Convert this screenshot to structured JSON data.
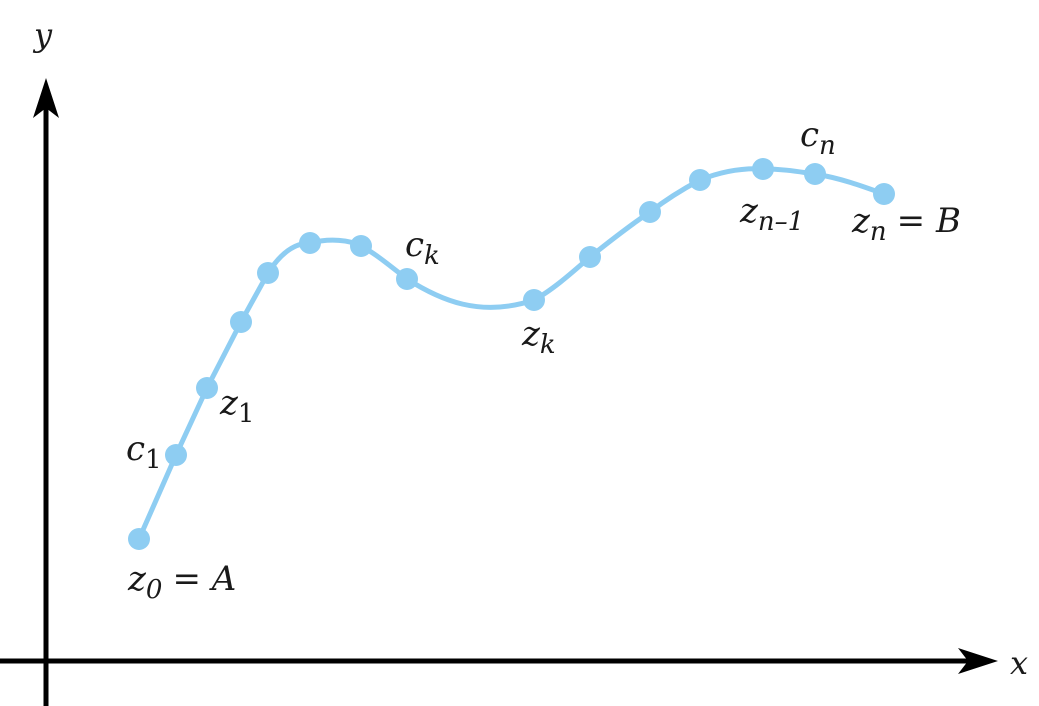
{
  "axes": {
    "x_label": "x",
    "y_label": "y"
  },
  "curve_color": "#8ecdf2",
  "labels": {
    "z0": {
      "base": "z",
      "sub": "0",
      "suffix": "= A"
    },
    "c1": {
      "base": "c",
      "sub": "1"
    },
    "z1": {
      "base": "z",
      "sub": "1"
    },
    "ck": {
      "base": "c",
      "sub": "k"
    },
    "zk": {
      "base": "z",
      "sub": "k"
    },
    "cn": {
      "base": "c",
      "sub": "n"
    },
    "zn1": {
      "base": "z",
      "sub": "n–1"
    },
    "zn": {
      "base": "z",
      "sub": "n",
      "suffix": "= B"
    }
  }
}
